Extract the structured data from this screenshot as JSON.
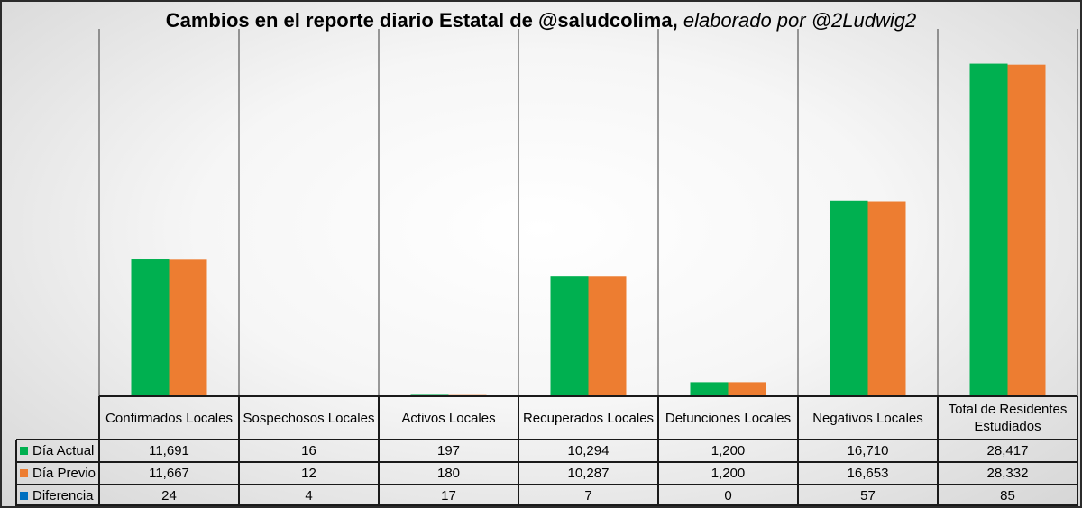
{
  "title": {
    "bold": "Cambios en el reporte diario Estatal de @saludcolima,",
    "italic": "elaborado por @2Ludwig2"
  },
  "chart_data": {
    "type": "bar",
    "categories": [
      "Confirmados Locales",
      "Sospechosos Locales",
      "Activos Locales",
      "Recuperados Locales",
      "Defunciones Locales",
      "Negativos Locales",
      "Total de Residentes Estudiados"
    ],
    "series": [
      {
        "name": "Día Actual",
        "color": "#00b050",
        "values": [
          11691,
          16,
          197,
          10294,
          1200,
          16710,
          28417
        ],
        "labels": [
          "11,691",
          "16",
          "197",
          "10,294",
          "1,200",
          "16,710",
          "28,417"
        ]
      },
      {
        "name": "Día Previo",
        "color": "#ed7d31",
        "values": [
          11667,
          12,
          180,
          10287,
          1200,
          16653,
          28332
        ],
        "labels": [
          "11,667",
          "12",
          "180",
          "10,287",
          "1,200",
          "16,653",
          "28,332"
        ]
      },
      {
        "name": "Diferencia",
        "color": "#0070c0",
        "values": [
          24,
          4,
          17,
          7,
          0,
          57,
          85
        ],
        "labels": [
          "24",
          "4",
          "17",
          "7",
          "0",
          "57",
          "85"
        ]
      }
    ],
    "ylim": [
      0,
      30000
    ],
    "grid": true,
    "legend": "data-table"
  }
}
